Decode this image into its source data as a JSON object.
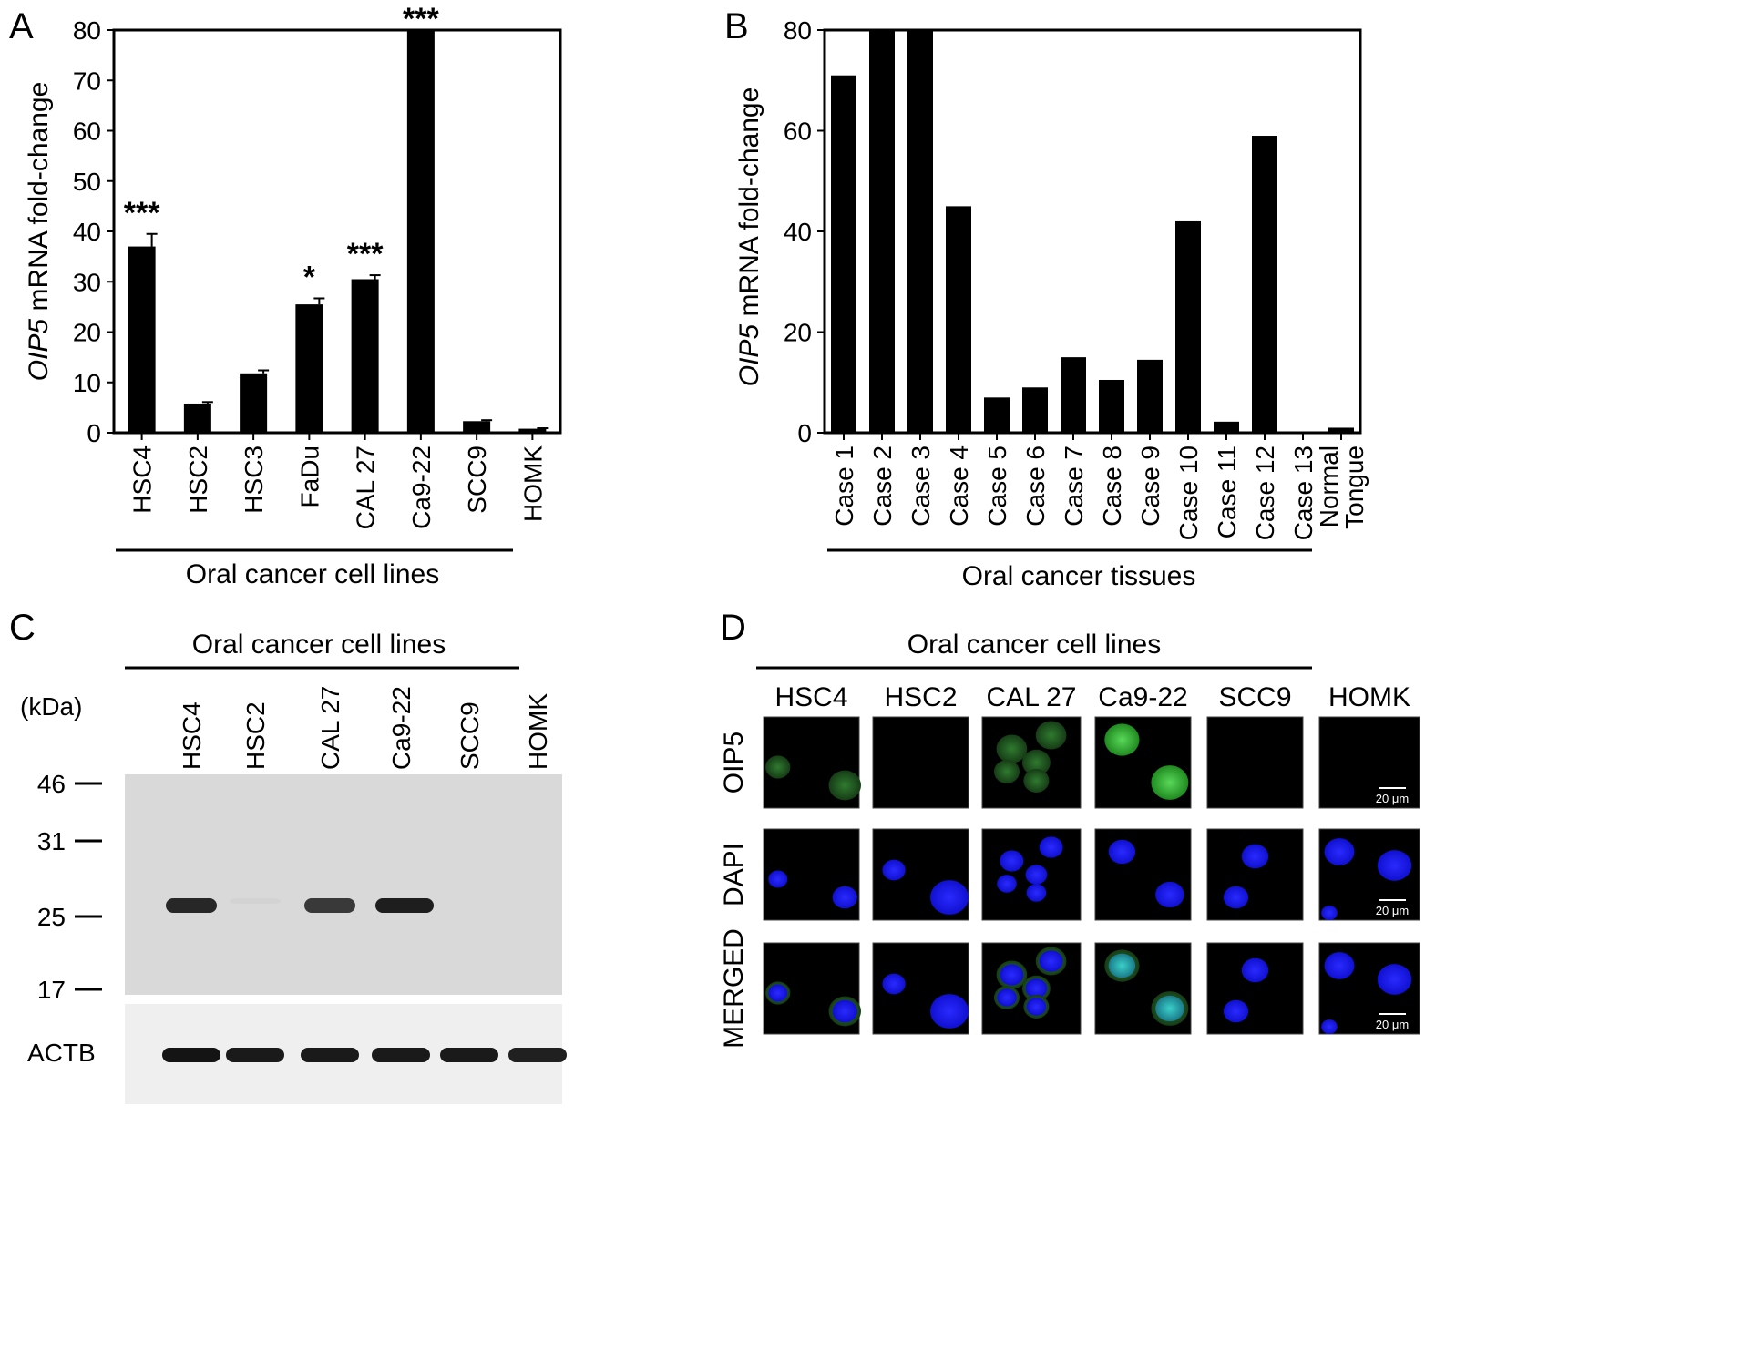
{
  "figure": {
    "panels": {
      "A": {
        "letter": "A",
        "group_label": "Oral cancer cell lines"
      },
      "B": {
        "letter": "B",
        "group_label": "Oral cancer tissues"
      },
      "C": {
        "letter": "C",
        "group_label": "Oral cancer cell lines",
        "kda_label": "(kDa)",
        "lanes": [
          "HSC4",
          "HSC2",
          "CAL 27",
          "Ca9-22",
          "SCC9",
          "HOMK"
        ],
        "markers": [
          "46",
          "31",
          "25",
          "17"
        ],
        "loading_label": "ACTB",
        "oip5_band_intensity": [
          0.95,
          0.05,
          0.85,
          1.0,
          0.0,
          0.0
        ],
        "actb_band_intensity": [
          1.0,
          0.95,
          0.95,
          0.95,
          0.95,
          0.9
        ]
      },
      "D": {
        "letter": "D",
        "group_label": "Oral cancer cell lines",
        "columns": [
          "HSC4",
          "HSC2",
          "CAL 27",
          "Ca9-22",
          "SCC9",
          "HOMK"
        ],
        "rows": [
          "OIP5",
          "DAPI",
          "MERGED"
        ],
        "scale_bar": "20 μm"
      }
    }
  },
  "chart_data": [
    {
      "type": "bar",
      "panel": "A",
      "categories": [
        "HSC4",
        "HSC2",
        "HSC3",
        "FaDu",
        "CAL 27",
        "Ca9-22",
        "SCC9",
        "HOMK"
      ],
      "values": [
        37,
        5.8,
        11.8,
        25.5,
        30.5,
        80,
        2.3,
        0.8
      ],
      "errors": [
        2.5,
        0.3,
        0.6,
        1.2,
        0.8,
        0,
        0.2,
        0.1
      ],
      "annotations": [
        "***",
        "",
        "",
        "*",
        "***",
        "***",
        "",
        ""
      ],
      "ylabel_italic": "OIP5",
      "ylabel": "mRNA fold-change",
      "ylim": [
        0,
        80
      ],
      "yticks": [
        "0",
        "10",
        "20",
        "30",
        "40",
        "50",
        "60",
        "70",
        "80"
      ]
    },
    {
      "type": "bar",
      "panel": "B",
      "categories": [
        "Case 1",
        "Case 2",
        "Case 3",
        "Case 4",
        "Case 5",
        "Case 6",
        "Case 7",
        "Case 8",
        "Case 9",
        "Case 10",
        "Case 11",
        "Case 12",
        "Case 13",
        "Normal Tongue"
      ],
      "category_lines": [
        [
          "Case 1"
        ],
        [
          "Case 2"
        ],
        [
          "Case 3"
        ],
        [
          "Case 4"
        ],
        [
          "Case 5"
        ],
        [
          "Case 6"
        ],
        [
          "Case 7"
        ],
        [
          "Case 8"
        ],
        [
          "Case 9"
        ],
        [
          "Case 10"
        ],
        [
          "Case 11"
        ],
        [
          "Case 12"
        ],
        [
          "Case 13"
        ],
        [
          "Normal",
          "Tongue"
        ]
      ],
      "values": [
        71,
        80,
        80,
        45,
        7,
        9,
        15,
        10.5,
        14.5,
        42,
        2.2,
        59,
        0,
        1
      ],
      "ylabel_italic": "OIP5",
      "ylabel": "mRNA fold-change",
      "ylim": [
        0,
        80
      ],
      "yticks": [
        "0",
        "20",
        "40",
        "60",
        "80"
      ]
    }
  ]
}
